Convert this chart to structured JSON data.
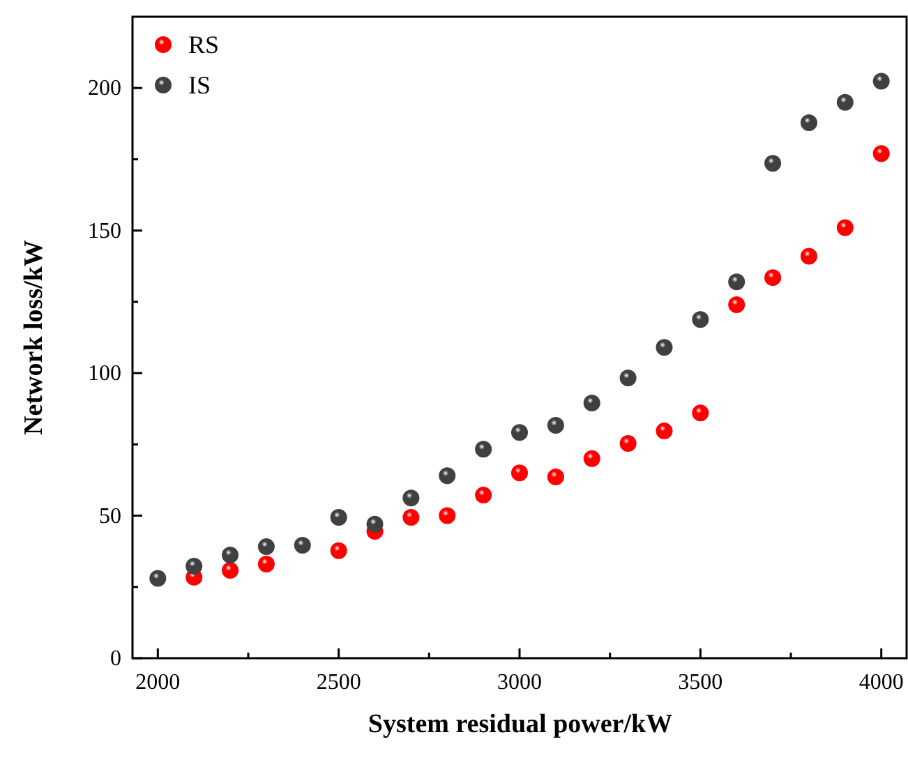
{
  "chart_data": {
    "type": "scatter",
    "xlabel": "System residual power/kW",
    "ylabel": "Network loss/kW",
    "x": [
      2000,
      2100,
      2200,
      2300,
      2400,
      2500,
      2600,
      2700,
      2800,
      2900,
      3000,
      3100,
      3200,
      3300,
      3400,
      3500,
      3600,
      3700,
      3800,
      3900,
      4000
    ],
    "series": [
      {
        "name": "RS",
        "color": "#ff0000",
        "values": [
          null,
          28.4,
          30.8,
          33,
          null,
          37.7,
          44.5,
          49.4,
          50,
          57.2,
          65,
          63.6,
          70,
          75.3,
          79.7,
          86,
          124,
          133.5,
          141,
          151,
          177
        ]
      },
      {
        "name": "IS",
        "color": "#404040",
        "values": [
          28,
          32.3,
          36.2,
          39.1,
          39.6,
          49.4,
          47,
          56.2,
          64,
          73.3,
          79.2,
          81.7,
          89.5,
          98.3,
          109,
          118.8,
          132,
          173.6,
          187.8,
          195,
          202.4
        ]
      }
    ],
    "xlim": [
      1930,
      4070
    ],
    "ylim": [
      0,
      225
    ],
    "xticks": [
      2000,
      {
        "value": 2250,
        "label": null
      },
      2500,
      {
        "value": 2750,
        "label": null
      },
      3000,
      {
        "value": 3250,
        "label": null
      },
      3500,
      {
        "value": 3750,
        "label": null
      },
      4000
    ],
    "yticks": [
      0,
      {
        "value": 25,
        "label": null
      },
      50,
      {
        "value": 75,
        "label": null
      },
      100,
      {
        "value": 125,
        "label": null
      },
      150,
      {
        "value": 175,
        "label": null
      },
      200
    ],
    "marker": "circle",
    "legend": "top left",
    "grid": false
  }
}
